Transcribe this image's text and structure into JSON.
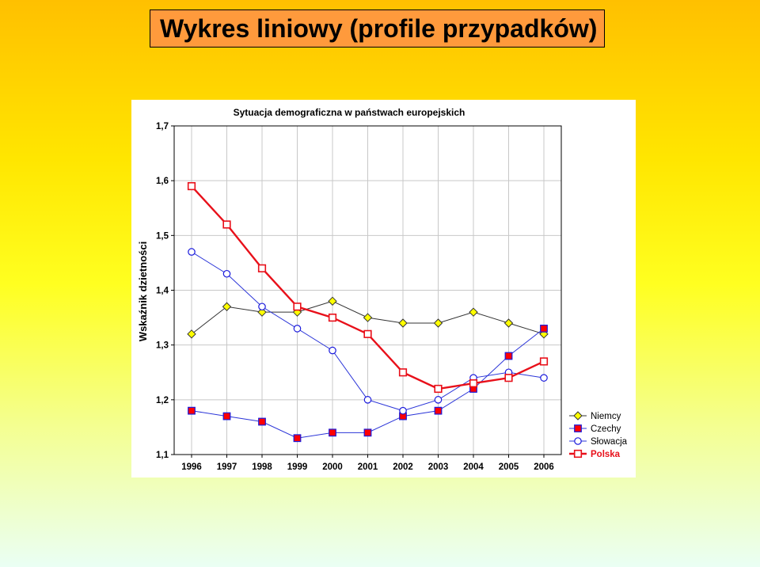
{
  "slide": {
    "title": "Wykres liniowy (profile przypadków)"
  },
  "chart_data": {
    "type": "line",
    "title": "Sytuacja demograficzna w państwach europejskich",
    "xlabel": "",
    "ylabel": "Wskaźnik dzietności",
    "categories": [
      "1996",
      "1997",
      "1998",
      "1999",
      "2000",
      "2001",
      "2002",
      "2003",
      "2004",
      "2005",
      "2006"
    ],
    "ylim": [
      1.1,
      1.7
    ],
    "yticks": [
      "1,1",
      "1,2",
      "1,3",
      "1,4",
      "1,5",
      "1,6",
      "1,7"
    ],
    "grid": true,
    "legend_position": "bottom-right",
    "series": [
      {
        "name": "Niemcy",
        "color": "#333333",
        "marker": "diamond",
        "marker_fill": "#ffff00",
        "marker_stroke": "#333333",
        "line_width": 1,
        "bold": false,
        "values": [
          1.32,
          1.37,
          1.36,
          1.36,
          1.38,
          1.35,
          1.34,
          1.34,
          1.36,
          1.34,
          1.32
        ]
      },
      {
        "name": "Czechy",
        "color": "#2b35d8",
        "marker": "square",
        "marker_fill": "#ff0000",
        "marker_stroke": "#1a1adc",
        "line_width": 1,
        "bold": false,
        "values": [
          1.18,
          1.17,
          1.16,
          1.13,
          1.14,
          1.14,
          1.17,
          1.18,
          1.22,
          1.28,
          1.33
        ]
      },
      {
        "name": "Słowacja",
        "color": "#2b35d8",
        "marker": "circle",
        "marker_fill": "#ffffff",
        "marker_stroke": "#1a1adc",
        "line_width": 1,
        "bold": false,
        "values": [
          1.47,
          1.43,
          1.37,
          1.33,
          1.29,
          1.2,
          1.18,
          1.2,
          1.24,
          1.25,
          1.24
        ]
      },
      {
        "name": "Polska",
        "color": "#e8101a",
        "marker": "square",
        "marker_fill": "#ffffff",
        "marker_stroke": "#e8101a",
        "line_width": 2.4,
        "bold": true,
        "values": [
          1.59,
          1.52,
          1.44,
          1.37,
          1.35,
          1.32,
          1.25,
          1.22,
          1.23,
          1.24,
          1.27
        ]
      }
    ]
  }
}
